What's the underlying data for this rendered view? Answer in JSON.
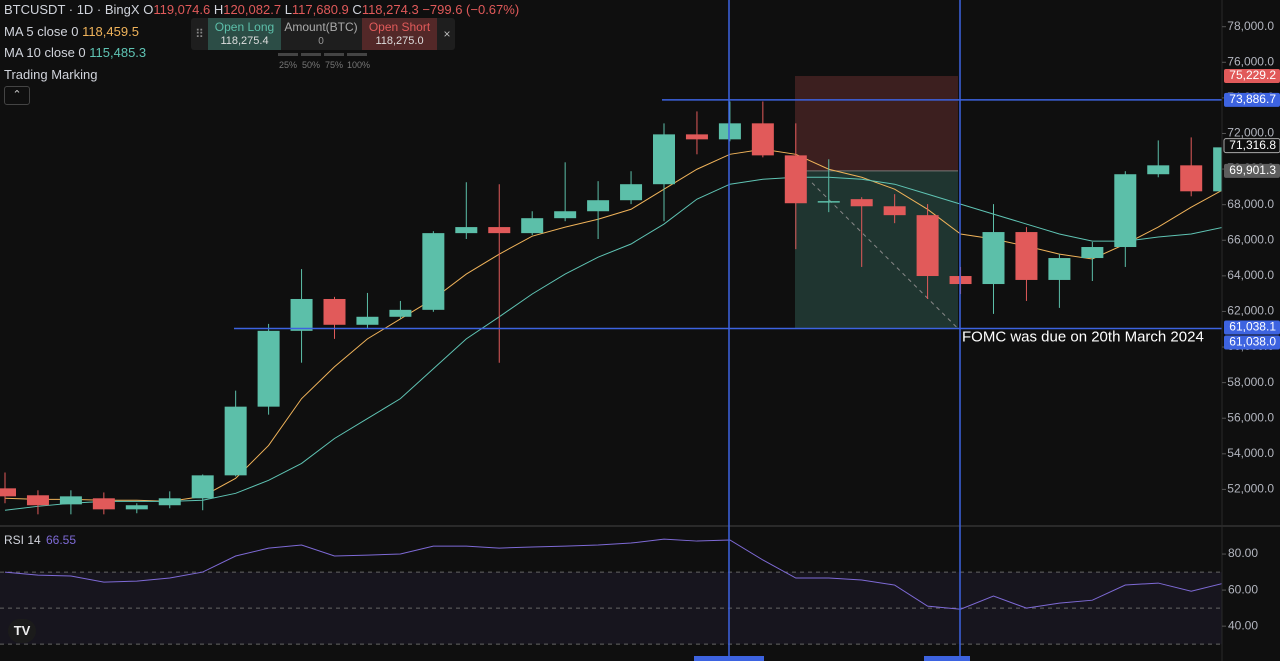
{
  "header": {
    "symbol": "BTCUSDT · 1D · BingX",
    "ohlc": [
      {
        "key": "O",
        "value": "119,074.6"
      },
      {
        "key": "H",
        "value": "120,082.7"
      },
      {
        "key": "L",
        "value": "117,680.9"
      },
      {
        "key": "C",
        "value": "118,274.3"
      }
    ],
    "change": "−799.6 (−0.67%)",
    "trading_marking": "Trading Marking"
  },
  "order_panel": {
    "long_label": "Open Long",
    "long_price": "118,275.4",
    "amount_label": "Amount(BTC)",
    "amount": "0",
    "short_label": "Open Short",
    "short_price": "118,275.0",
    "percents": [
      "25%",
      "50%",
      "75%",
      "100%"
    ]
  },
  "chart_data": [
    {
      "type": "candlestick",
      "up_color": "#5cbfa9",
      "down_color": "#e15a5a",
      "ylim": [
        50000,
        79500
      ],
      "yticks": [
        {
          "value": 52000,
          "label": "52,000.0"
        },
        {
          "value": 54000,
          "label": "54,000.0"
        },
        {
          "value": 56000,
          "label": "56,000.0"
        },
        {
          "value": 58000,
          "label": "58,000.0"
        },
        {
          "value": 60000,
          "label": "60,000.0"
        },
        {
          "value": 62000,
          "label": "62,000.0"
        },
        {
          "value": 64000,
          "label": "64,000.0"
        },
        {
          "value": 66000,
          "label": "66,000.0"
        },
        {
          "value": 68000,
          "label": "68,000.0"
        },
        {
          "value": 70000,
          "label": "70,000.0"
        },
        {
          "value": 72000,
          "label": "72,000.0"
        },
        {
          "value": 74000,
          "label": "74,000.0"
        },
        {
          "value": 76000,
          "label": "76,000.0"
        },
        {
          "value": 78000,
          "label": "78,000.0"
        }
      ],
      "open": [
        52060,
        51670,
        51160,
        51500,
        50880,
        51110,
        51500,
        52790,
        56650,
        60910,
        62700,
        61250,
        61700,
        62090,
        66400,
        66740,
        66400,
        67240,
        67630,
        68250,
        69150,
        71950,
        71670,
        72570,
        70770,
        68140,
        68310,
        67910,
        67410,
        63990,
        63540,
        66460,
        63770,
        65000,
        65620,
        69710,
        70210,
        68750
      ],
      "high": [
        52950,
        51950,
        51950,
        51830,
        51220,
        51890,
        52840,
        57550,
        61300,
        64380,
        62820,
        63040,
        62590,
        66510,
        69260,
        69150,
        67630,
        70380,
        69320,
        69880,
        72570,
        73240,
        73800,
        73800,
        72570,
        70550,
        68420,
        68590,
        68030,
        64500,
        68030,
        66740,
        65220,
        65900,
        69880,
        71610,
        71780,
        71610
      ],
      "low": [
        51220,
        50600,
        50600,
        50600,
        50660,
        50940,
        50830,
        52730,
        56200,
        59120,
        60460,
        61020,
        61580,
        61980,
        66070,
        59120,
        66290,
        67070,
        66070,
        68030,
        67070,
        70830,
        71560,
        70660,
        65500,
        67580,
        64500,
        66960,
        62700,
        62980,
        61860,
        62590,
        62200,
        63710,
        64500,
        69540,
        68470,
        68200
      ],
      "close": [
        51610,
        51110,
        51610,
        50880,
        51110,
        51500,
        52790,
        56650,
        60910,
        62700,
        61250,
        61700,
        62090,
        66400,
        66740,
        66400,
        67240,
        67630,
        68250,
        69150,
        71950,
        71670,
        72570,
        70770,
        68080,
        68200,
        67910,
        67410,
        63990,
        63540,
        66460,
        63770,
        65000,
        65620,
        69710,
        70210,
        68750,
        71220
      ],
      "series": [
        {
          "name": "MA 5 close 0",
          "legend_value": "118,459.5",
          "color": "#f0b35a",
          "values": [
            51500,
            51440,
            51440,
            51390,
            51390,
            51330,
            51610,
            52620,
            54470,
            57100,
            58890,
            60460,
            61580,
            62700,
            64100,
            65220,
            66230,
            66740,
            67180,
            67740,
            68870,
            69990,
            70830,
            71110,
            70830,
            69990,
            69540,
            68870,
            67740,
            66350,
            66070,
            65670,
            65220,
            64950,
            65790,
            66740,
            67860,
            68870
          ]
        },
        {
          "name": "MA 10 close 0",
          "legend_value": "115,485.3",
          "color": "#5fc4b4",
          "values": [
            50830,
            51050,
            51220,
            51330,
            51330,
            51330,
            51390,
            51780,
            52510,
            53460,
            54860,
            55980,
            57100,
            58780,
            60460,
            61700,
            62980,
            64100,
            65050,
            65790,
            66910,
            68310,
            69150,
            69430,
            69540,
            69540,
            69430,
            69150,
            68590,
            68030,
            67470,
            66910,
            66350,
            65950,
            65950,
            66180,
            66350,
            66740
          ]
        }
      ],
      "hlines": [
        {
          "value": 73886.7,
          "label": "73,886.7"
        },
        {
          "value": 61038.0,
          "label": "61,038.0"
        }
      ],
      "position": {
        "stop": {
          "value": 75229.2,
          "label": "75,229.2"
        },
        "entry": {
          "value": 69901.3,
          "label": "69,901.3"
        },
        "target": {
          "value": 61038.1,
          "label": "61,038.1"
        }
      },
      "last_price": {
        "value": 71316.8,
        "label": "71,316.8"
      },
      "annotation": "FOMC was due on 20th March 2024"
    },
    {
      "type": "line",
      "ylim": [
        24,
        95
      ],
      "yticks": [
        {
          "value": 40,
          "label": "40.00"
        },
        {
          "value": 60,
          "label": "60.00"
        },
        {
          "value": 80,
          "label": "80.00"
        }
      ],
      "levels": [
        70,
        50,
        30
      ],
      "series": [
        {
          "name": "RSI 14",
          "legend_value": "66.55",
          "color": "#7e6ad6",
          "values": [
            70,
            68.3,
            67.8,
            64.4,
            65,
            66.7,
            70,
            78.9,
            83.3,
            85,
            78.9,
            79.4,
            80,
            84.4,
            84.4,
            83.3,
            83.9,
            84.4,
            85,
            86.1,
            88.3,
            87.2,
            87.8,
            76.7,
            66.7,
            66.7,
            65.6,
            62.8,
            51.1,
            49.4,
            56.7,
            50,
            52.8,
            54.4,
            62.8,
            63.9,
            59.4,
            63.9
          ]
        }
      ]
    }
  ]
}
